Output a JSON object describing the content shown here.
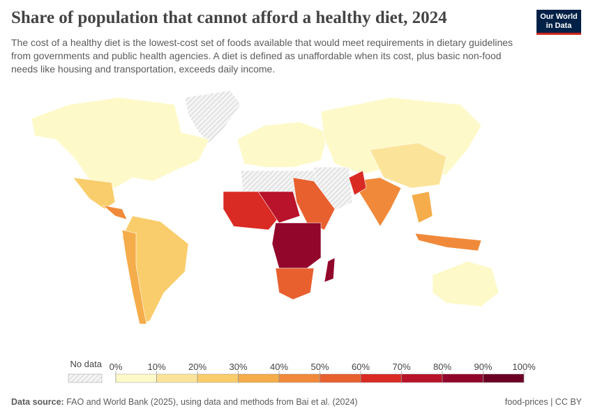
{
  "header": {
    "title": "Share of population that cannot afford a healthy diet, 2024",
    "subtitle": "The cost of a healthy diet is the lowest-cost set of foods available that would meet requirements in dietary guidelines from governments and public health agencies. A diet is defined as unaffordable when its cost, plus basic non-food needs like housing and transportation, exceeds daily income."
  },
  "logo": {
    "lines": [
      "Our World",
      "in Data"
    ]
  },
  "legend": {
    "no_data_label": "No data",
    "colors": [
      "#fef9c8",
      "#fbe49a",
      "#f9cd6b",
      "#f5ac4a",
      "#f08a3a",
      "#e9602f",
      "#d92b24",
      "#b8132a",
      "#92062b",
      "#6b0024"
    ],
    "ticks": [
      {
        "value": 0,
        "label": "0%"
      },
      {
        "value": 10,
        "label": "10%"
      },
      {
        "value": 20,
        "label": "20%"
      },
      {
        "value": 30,
        "label": "30%"
      },
      {
        "value": 40,
        "label": "40%"
      },
      {
        "value": 50,
        "label": "50%"
      },
      {
        "value": 60,
        "label": "60%"
      },
      {
        "value": 70,
        "label": "70%"
      },
      {
        "value": 80,
        "label": "80%"
      },
      {
        "value": 90,
        "label": "90%"
      },
      {
        "value": 100,
        "label": "100%"
      }
    ]
  },
  "footer": {
    "source_label": "Data source:",
    "source_text": "FAO and World Bank (2025), using data and methods from Bai et al. (2024)",
    "license": "food-prices | CC BY"
  }
}
